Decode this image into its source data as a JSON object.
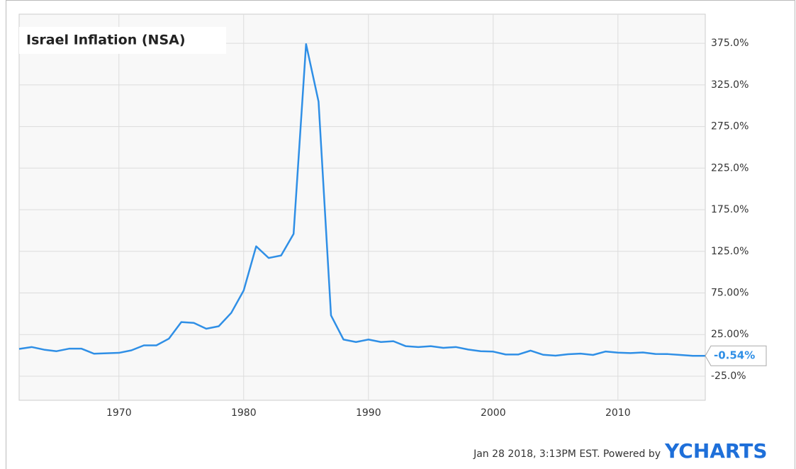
{
  "chart_data": {
    "type": "line",
    "title": "Israel Inflation (NSA)",
    "x": [
      1962,
      1963,
      1964,
      1965,
      1966,
      1967,
      1968,
      1969,
      1970,
      1971,
      1972,
      1973,
      1974,
      1975,
      1976,
      1977,
      1978,
      1979,
      1980,
      1981,
      1982,
      1983,
      1984,
      1985,
      1986,
      1987,
      1988,
      1989,
      1990,
      1991,
      1992,
      1993,
      1994,
      1995,
      1996,
      1997,
      1998,
      1999,
      2000,
      2001,
      2002,
      2003,
      2004,
      2005,
      2006,
      2007,
      2008,
      2009,
      2010,
      2011,
      2012,
      2013,
      2014,
      2015,
      2016,
      2017
    ],
    "series": [
      {
        "name": "Israel Inflation (NSA)",
        "color": "#2f8fe6",
        "values": [
          7.7,
          10,
          6.8,
          5,
          8,
          8,
          2,
          2.5,
          3,
          6,
          12,
          12,
          20,
          40,
          39,
          32,
          35,
          51,
          78,
          131,
          117,
          120,
          146,
          374,
          305,
          48,
          19,
          16,
          19,
          16,
          17,
          11,
          10,
          11,
          9,
          10,
          7,
          5,
          4.5,
          1,
          1,
          5.7,
          0.7,
          -0.4,
          1.3,
          2.1,
          0.5,
          4.6,
          3.3,
          2.7,
          3.5,
          1.7,
          1.5,
          0.5,
          -0.6,
          -0.54
        ],
        "value_labels": [
          null,
          null,
          null,
          null,
          null,
          null,
          null,
          null,
          null,
          null,
          null,
          null,
          null,
          null,
          null,
          null,
          null,
          null,
          null,
          null,
          null,
          null,
          null,
          null,
          null,
          null,
          null,
          null,
          null,
          null,
          null,
          null,
          null,
          null,
          null,
          null,
          null,
          null,
          null,
          null,
          null,
          null,
          null,
          null,
          null,
          null,
          null,
          null,
          null,
          null,
          null,
          null,
          null,
          null,
          null,
          "-0.54%"
        ]
      }
    ],
    "xlim": [
      1962,
      2017
    ],
    "xticks": [
      1970,
      1980,
      1990,
      2000,
      2010
    ],
    "ylim": [
      -54,
      410
    ],
    "yticks": [
      {
        "value": -25,
        "label": "-25.0%"
      },
      {
        "value": 25,
        "label": "25.00%"
      },
      {
        "value": 75,
        "label": "75.00%"
      },
      {
        "value": 125,
        "label": "125.0%"
      },
      {
        "value": 175,
        "label": "175.0%"
      },
      {
        "value": 225,
        "label": "225.0%"
      },
      {
        "value": 275,
        "label": "275.0%"
      },
      {
        "value": 325,
        "label": "325.0%"
      },
      {
        "value": 375,
        "label": "375.0%"
      }
    ],
    "grid": true,
    "footer": "Jan 28 2018, 3:13PM EST.  Powered by",
    "brand": "YCHARTS"
  }
}
